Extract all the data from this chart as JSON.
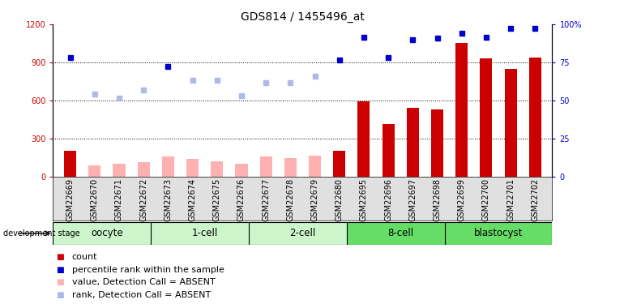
{
  "title": "GDS814 / 1455496_at",
  "samples": [
    "GSM22669",
    "GSM22670",
    "GSM22671",
    "GSM22672",
    "GSM22673",
    "GSM22674",
    "GSM22675",
    "GSM22676",
    "GSM22677",
    "GSM22678",
    "GSM22679",
    "GSM22680",
    "GSM22695",
    "GSM22696",
    "GSM22697",
    "GSM22698",
    "GSM22699",
    "GSM22700",
    "GSM22701",
    "GSM22702"
  ],
  "bar_values": [
    200,
    85,
    100,
    110,
    155,
    140,
    120,
    100,
    155,
    145,
    165,
    200,
    590,
    415,
    540,
    530,
    1050,
    930,
    850,
    935
  ],
  "bar_absent": [
    false,
    true,
    true,
    true,
    true,
    true,
    true,
    true,
    true,
    true,
    true,
    false,
    false,
    false,
    false,
    false,
    false,
    false,
    false,
    false
  ],
  "rank_values": [
    940,
    650,
    620,
    680,
    870,
    760,
    760,
    640,
    740,
    740,
    790,
    920,
    1100,
    940,
    1080,
    1090,
    1130,
    1100,
    1170,
    1170
  ],
  "rank_absent": [
    false,
    true,
    true,
    true,
    false,
    true,
    true,
    true,
    true,
    true,
    true,
    false,
    false,
    false,
    false,
    false,
    false,
    false,
    false,
    false
  ],
  "stages": [
    {
      "name": "oocyte",
      "start": 0,
      "end": 4,
      "color": "#ccf5cc"
    },
    {
      "name": "1-cell",
      "start": 4,
      "end": 8,
      "color": "#ccf5cc"
    },
    {
      "name": "2-cell",
      "start": 8,
      "end": 12,
      "color": "#ccf5cc"
    },
    {
      "name": "8-cell",
      "start": 12,
      "end": 16,
      "color": "#66dd66"
    },
    {
      "name": "blastocyst",
      "start": 16,
      "end": 20,
      "color": "#66dd66"
    }
  ],
  "ylim_left": [
    0,
    1200
  ],
  "ylim_right": [
    0,
    100
  ],
  "yticks_left": [
    0,
    300,
    600,
    900,
    1200
  ],
  "yticks_right": [
    0,
    25,
    50,
    75,
    100
  ],
  "ytick_right_labels": [
    "0",
    "25",
    "50",
    "75",
    "100%"
  ],
  "bar_color_present": "#cc0000",
  "bar_color_absent": "#ffb0b0",
  "rank_color_present": "#0000cc",
  "rank_color_absent": "#b0b8e8",
  "bar_width": 0.5,
  "rank_marker_size": 5,
  "title_fontsize": 10,
  "tick_fontsize": 7,
  "stage_fontsize": 8.5,
  "legend_fontsize": 8,
  "hgrid_values": [
    300,
    600,
    900
  ],
  "legend_items": [
    {
      "color": "#cc0000",
      "label": "count"
    },
    {
      "color": "#0000cc",
      "label": "percentile rank within the sample"
    },
    {
      "color": "#ffb0b0",
      "label": "value, Detection Call = ABSENT"
    },
    {
      "color": "#b0b8e8",
      "label": "rank, Detection Call = ABSENT"
    }
  ]
}
